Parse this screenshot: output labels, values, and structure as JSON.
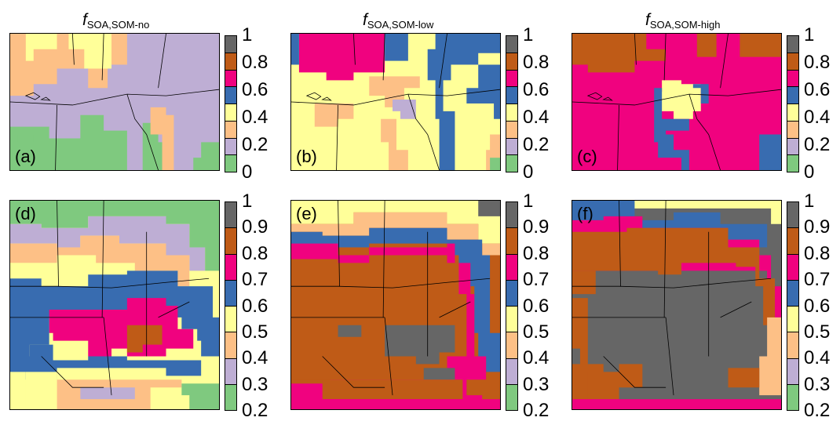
{
  "titles": [
    {
      "main": "f",
      "sub": "SOA,SOM-no"
    },
    {
      "main": "f",
      "sub": "SOA,SOM-low"
    },
    {
      "main": "f",
      "sub": "SOA,SOM-high"
    }
  ],
  "panel_labels": [
    "(a)",
    "(b)",
    "(c)",
    "(d)",
    "(e)",
    "(f)"
  ],
  "colors": {
    "green": "#7fc97f",
    "lavender": "#beaed4",
    "orange": "#fdc086",
    "yellow": "#ffff99",
    "blue": "#386cb0",
    "magenta": "#f0027f",
    "brown": "#bf5b17",
    "gray": "#666666"
  },
  "colorbars": {
    "top": {
      "ticks": [
        "1",
        "0.8",
        "0.6",
        "0.4",
        "0.2",
        "0"
      ],
      "bins_top_to_bottom": [
        "gray",
        "brown",
        "magenta",
        "blue",
        "yellow",
        "orange",
        "lavender",
        "green"
      ]
    },
    "bottom": {
      "ticks": [
        "1",
        "0.9",
        "0.8",
        "0.7",
        "0.6",
        "0.5",
        "0.4",
        "0.3",
        "0.2"
      ],
      "bins_top_to_bottom": [
        "gray",
        "brown",
        "magenta",
        "blue",
        "yellow",
        "orange",
        "lavender",
        "green"
      ]
    }
  },
  "map_fields": {
    "a": {
      "base": "lavender"
    },
    "b": {
      "base": "yellow"
    },
    "c": {
      "base": "magenta"
    },
    "d": {
      "base": "yellow"
    },
    "e": {
      "base": "brown"
    },
    "f": {
      "base": "gray"
    }
  }
}
